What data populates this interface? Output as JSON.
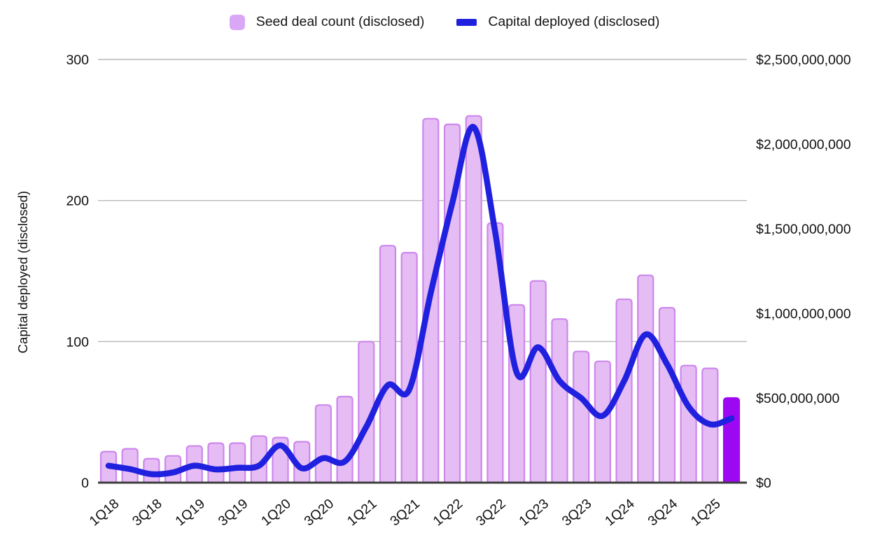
{
  "legend": {
    "bar_label": "Seed deal count (disclosed)",
    "line_label": "Capital deployed (disclosed)"
  },
  "axes": {
    "left_title": "Capital deployed (disclosed)",
    "left_ticks": [
      "0",
      "100",
      "200",
      "300"
    ],
    "right_ticks": [
      "$0",
      "$500,000,000",
      "$1,000,000,000",
      "$1,500,000,000",
      "$2,000,000,000",
      "$2,500,000,000"
    ],
    "x_tick_labels": [
      "1Q18",
      "3Q18",
      "1Q19",
      "3Q19",
      "1Q20",
      "3Q20",
      "1Q21",
      "3Q21",
      "1Q22",
      "3Q22",
      "1Q23",
      "3Q23",
      "1Q24",
      "3Q24",
      "1Q25"
    ]
  },
  "chart_data": {
    "type": "combo-bar-line",
    "categories": [
      "1Q18",
      "2Q18",
      "3Q18",
      "4Q18",
      "1Q19",
      "2Q19",
      "3Q19",
      "4Q19",
      "1Q20",
      "2Q20",
      "3Q20",
      "4Q20",
      "1Q21",
      "2Q21",
      "3Q21",
      "4Q21",
      "1Q22",
      "2Q22",
      "3Q22",
      "4Q22",
      "1Q23",
      "2Q23",
      "3Q23",
      "4Q23",
      "1Q24",
      "2Q24",
      "3Q24",
      "4Q24",
      "1Q25",
      "2Q25"
    ],
    "series": [
      {
        "name": "Seed deal count (disclosed)",
        "type": "bar",
        "axis": "left",
        "values": [
          22,
          24,
          17,
          19,
          26,
          28,
          28,
          33,
          32,
          29,
          55,
          61,
          100,
          168,
          163,
          258,
          254,
          260,
          184,
          126,
          143,
          116,
          93,
          86,
          130,
          147,
          124,
          83,
          81,
          60
        ]
      },
      {
        "name": "Capital deployed (disclosed)",
        "type": "line",
        "axis": "right",
        "values_usd": [
          100000000,
          80000000,
          50000000,
          60000000,
          100000000,
          78000000,
          88000000,
          100000000,
          220000000,
          85000000,
          145000000,
          125000000,
          330000000,
          575000000,
          550000000,
          1120000000,
          1650000000,
          2100000000,
          1480000000,
          650000000,
          800000000,
          600000000,
          500000000,
          395000000,
          600000000,
          875000000,
          700000000,
          450000000,
          345000000,
          380000000
        ]
      }
    ],
    "ylabel_left_axis_title": "Capital deployed (disclosed)",
    "ylim_left": [
      0,
      300
    ],
    "ylim_right": [
      0,
      2500000000
    ],
    "grid": "horizontal-left-axis-only",
    "legend_position": "top-center",
    "highlighted_last_category": "2Q25"
  },
  "colors": {
    "bar_fill": "#e5bdf4",
    "bar_border": "#cd87ec",
    "highlight_bar_fill": "#9c08f2",
    "highlight_bar_border": "#9c08f2",
    "line": "#2020df",
    "legend_bar_swatch": "#d9a7f5",
    "gridline": "#b9b9b9",
    "axis_line": "#3d3d3d",
    "text": "#111111"
  }
}
